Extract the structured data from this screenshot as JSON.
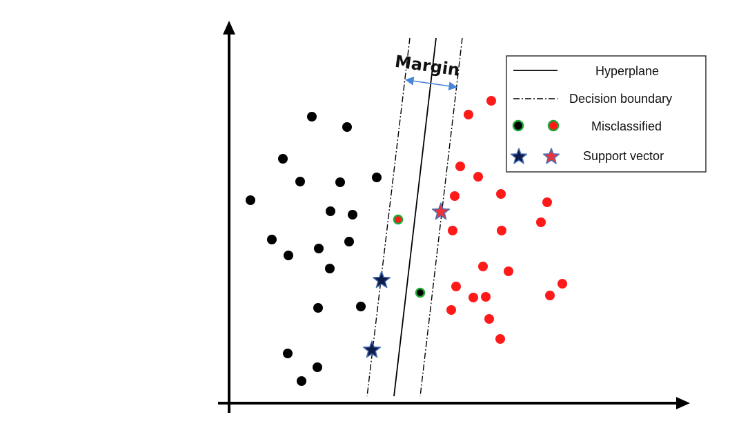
{
  "margin_label": "Margin",
  "legend": {
    "hyperplane": "Hyperplane",
    "decision_boundary": "Decision boundary",
    "misclassified": "Misclassified",
    "support_vector": "Support vector"
  },
  "colors": {
    "class_a": "#000000",
    "class_b": "#ff1a1a",
    "misclassified_ring": "#1fa83a",
    "support_vector_a": "#0d1b4a",
    "support_vector_b": "#e8343a",
    "support_vector_stroke": "#4a6fb5",
    "margin_arrow": "#4a86d8",
    "axis": "#000000"
  },
  "chart_data": {
    "type": "scatter",
    "title": "",
    "xlabel": "",
    "ylabel": "",
    "grid": false,
    "legend_position": "top-right",
    "series": [
      {
        "name": "class-black",
        "marker": "circle",
        "points": [
          [
            452,
            169
          ],
          [
            503,
            184
          ],
          [
            410,
            230
          ],
          [
            546,
            257
          ],
          [
            435,
            263
          ],
          [
            493,
            264
          ],
          [
            363,
            290
          ],
          [
            479,
            306
          ],
          [
            511,
            311
          ],
          [
            394,
            347
          ],
          [
            506,
            350
          ],
          [
            462,
            360
          ],
          [
            418,
            370
          ],
          [
            478,
            389
          ],
          [
            523,
            444
          ],
          [
            461,
            446
          ],
          [
            417,
            512
          ],
          [
            460,
            532
          ],
          [
            437,
            552
          ]
        ]
      },
      {
        "name": "class-red",
        "marker": "circle",
        "points": [
          [
            712,
            146
          ],
          [
            679,
            166
          ],
          [
            667,
            241
          ],
          [
            693,
            256
          ],
          [
            659,
            284
          ],
          [
            726,
            281
          ],
          [
            793,
            293
          ],
          [
            784,
            322
          ],
          [
            656,
            334
          ],
          [
            727,
            334
          ],
          [
            700,
            386
          ],
          [
            737,
            393
          ],
          [
            661,
            415
          ],
          [
            815,
            411
          ],
          [
            686,
            431
          ],
          [
            704,
            430
          ],
          [
            797,
            428
          ],
          [
            654,
            449
          ],
          [
            709,
            462
          ],
          [
            725,
            491
          ]
        ]
      },
      {
        "name": "misclassified",
        "marker": "ringed-circle",
        "points": [
          [
            577,
            318,
            "class-b-fill"
          ],
          [
            609,
            424,
            "class-a-fill"
          ]
        ]
      },
      {
        "name": "support-vectors",
        "marker": "star",
        "points": [
          [
            553,
            406,
            "class-a"
          ],
          [
            539,
            507,
            "class-a"
          ],
          [
            639,
            307,
            "class-b"
          ]
        ]
      }
    ]
  }
}
